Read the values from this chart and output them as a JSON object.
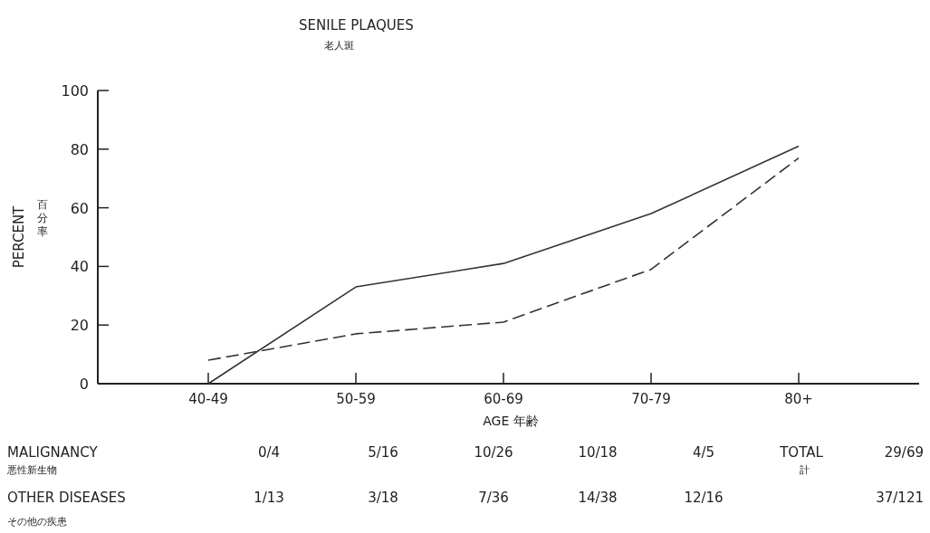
{
  "chart_data": {
    "type": "line",
    "title": "SENILE PLAQUES",
    "subtitle": "老人斑",
    "xlabel": "AGE 年齢",
    "ylabel": "PERCENT",
    "categories": [
      "40-49",
      "50-59",
      "60-69",
      "70-79",
      "80+"
    ],
    "series": [
      {
        "color": "#333333",
        "line_style": "solid",
        "values": [
          0,
          33,
          41,
          58,
          81
        ]
      },
      {
        "color": "#333333",
        "line_style": "dashed",
        "values": [
          8,
          17,
          21,
          39,
          77
        ]
      }
    ],
    "ylim": [
      0,
      100
    ],
    "yticks": [
      0,
      20,
      40,
      60,
      80,
      100
    ],
    "grid": false,
    "marker": "none",
    "annotations": [
      "百分率",
      "MALIGNANCY",
      "悪性新生物",
      "0/4",
      "5/16",
      "10/26",
      "10/18",
      "4/5",
      "TOTAL",
      "計",
      "29/69",
      "OTHER DISEASES",
      "その他の疾患",
      "1/13",
      "3/18",
      "7/36",
      "14/38",
      "12/16",
      "37/121"
    ]
  }
}
